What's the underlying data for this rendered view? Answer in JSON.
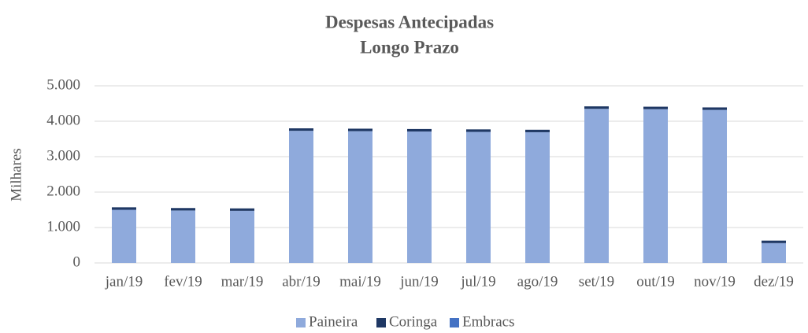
{
  "chart_data": {
    "type": "stacked_bar",
    "title": "Despesas Antecipadas",
    "subtitle": "Longo Prazo",
    "y_label": "Milhares",
    "categories": [
      "jan/19",
      "fev/19",
      "mar/19",
      "abr/19",
      "mai/19",
      "jun/19",
      "jul/19",
      "ago/19",
      "set/19",
      "out/19",
      "nov/19",
      "dez/19"
    ],
    "series": [
      {
        "name": "Paineira",
        "color": "#8faadc",
        "values": [
          1500,
          1480,
          1470,
          3730,
          3720,
          3710,
          3700,
          3690,
          4350,
          4340,
          4320,
          560
        ]
      },
      {
        "name": "Coringa",
        "color": "#1f3864",
        "values": [
          70,
          70,
          70,
          70,
          70,
          70,
          70,
          70,
          70,
          70,
          70,
          70
        ]
      },
      {
        "name": "Embracs",
        "color": "#4472c4",
        "values": [
          0,
          0,
          0,
          0,
          0,
          0,
          0,
          0,
          0,
          0,
          0,
          0
        ]
      }
    ],
    "ylim": [
      0,
      5000
    ],
    "yticks": [
      0,
      {
        "value": 1000,
        "label": "1.000"
      },
      {
        "value": 2000,
        "label": "2.000"
      },
      {
        "value": 3000,
        "label": "3.000"
      },
      {
        "value": 4000,
        "label": "4.000"
      },
      {
        "value": 5000,
        "label": "5.000"
      }
    ],
    "grid": true,
    "legend": "bottom"
  }
}
